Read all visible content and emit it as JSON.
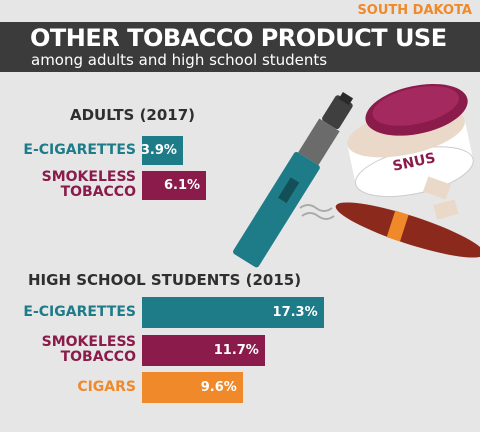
{
  "header": {
    "state": "SOUTH DAKOTA",
    "title": "OTHER TOBACCO PRODUCT USE",
    "subtitle": "among adults and high school students"
  },
  "illustration": {
    "snus_label": "SNUS"
  },
  "chart_data": [
    {
      "type": "bar",
      "orientation": "horizontal",
      "title": "ADULTS (2017)",
      "categories": [
        "E-CIGARETTES",
        "SMOKELESS TOBACCO"
      ],
      "values": [
        3.9,
        6.1
      ],
      "value_labels": [
        "3.9%",
        "6.1%"
      ],
      "colors": [
        "#1e7b88",
        "#8a1b4b"
      ]
    },
    {
      "type": "bar",
      "orientation": "horizontal",
      "title": "HIGH SCHOOL STUDENTS (2015)",
      "categories": [
        "E-CIGARETTES",
        "SMOKELESS TOBACCO",
        "CIGARS"
      ],
      "values": [
        17.3,
        11.7,
        9.6
      ],
      "value_labels": [
        "17.3%",
        "11.7%",
        "9.6%"
      ],
      "colors": [
        "#1e7b88",
        "#8a1b4b",
        "#f0892a"
      ]
    }
  ]
}
